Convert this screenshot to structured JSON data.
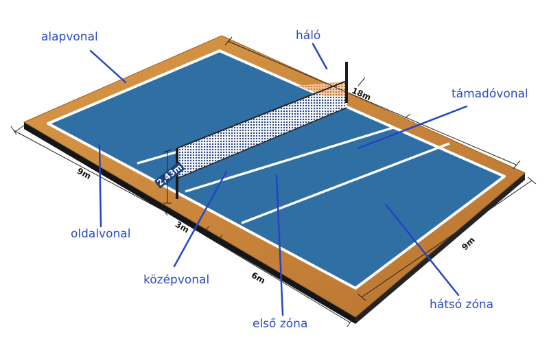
{
  "labels": {
    "baseline": "alapvonal",
    "net": "háló",
    "attack_line": "támadóvonal",
    "sideline": "oldalvonal",
    "center_line": "középvonal",
    "front_zone": "első zóna",
    "back_zone": "hátsó zóna"
  },
  "dimensions": {
    "length": "18m",
    "width_left": "9m",
    "width_right": "9m",
    "attack_zone_depth": "3m",
    "back_zone_depth": "6m",
    "net_height": "2,43m"
  },
  "colors": {
    "court": "#2f6fa4",
    "floor": "#cf8d3f",
    "base": "#1c1c1c",
    "label": "#2b4bc4",
    "leader": "#2444c8"
  }
}
